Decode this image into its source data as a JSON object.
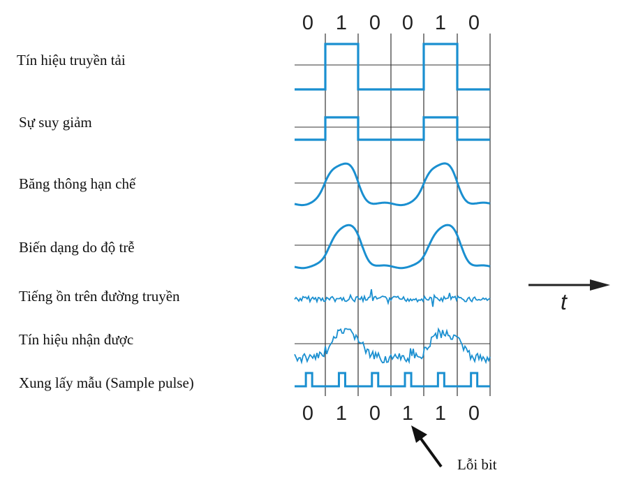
{
  "colors": {
    "signal": "#1a8fd0",
    "grid": "#333333",
    "text": "#111111"
  },
  "diagram": {
    "bits_sent": [
      "0",
      "1",
      "0",
      "0",
      "1",
      "0"
    ],
    "bits_received": [
      "0",
      "1",
      "0",
      "1",
      "1",
      "0"
    ],
    "error_bit_index": 3,
    "rows": [
      {
        "label": "Tín hiệu truyền tải",
        "kind": "transmitted"
      },
      {
        "label": "Sự suy giảm",
        "kind": "attenuated"
      },
      {
        "label": "Băng thông hạn chế",
        "kind": "bandlimited"
      },
      {
        "label": "Biến dạng do độ trễ",
        "kind": "delay"
      },
      {
        "label": "Tiếng ồn trên đường truyền",
        "kind": "noise"
      },
      {
        "label": "Tín hiệu nhận được",
        "kind": "received"
      },
      {
        "label": "Xung lấy mẫu (Sample pulse)",
        "kind": "sample"
      }
    ],
    "time_axis_label": "t",
    "error_label": "Lỗi bit"
  }
}
